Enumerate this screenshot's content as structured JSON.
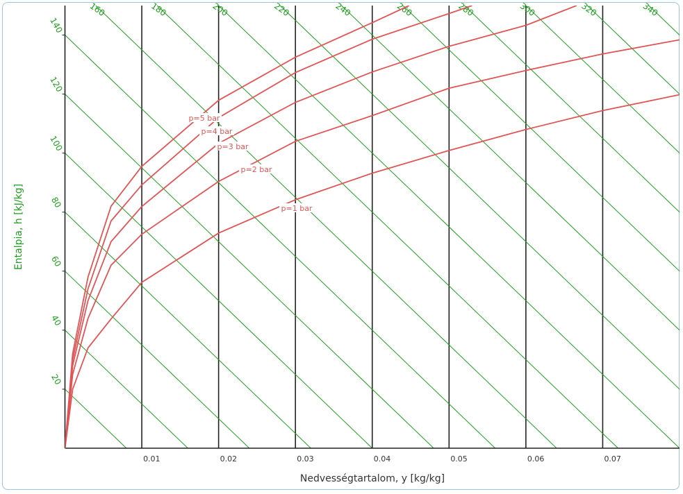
{
  "chart_data": {
    "type": "line",
    "xlabel": "Nedvességtartalom, y [kg/kg]",
    "ylabel": "Entalpia, h [kJ/kg]",
    "xlim": [
      0,
      0.08
    ],
    "ylim": [
      0,
      150
    ],
    "xticks": [
      0.01,
      0.02,
      0.03,
      0.04,
      0.05,
      0.06,
      0.07
    ],
    "yticks": [
      20,
      40,
      60,
      80,
      100,
      120,
      140
    ],
    "enthalpy_lines": {
      "color": "#1e9e1e",
      "values": [
        160,
        180,
        200,
        220,
        240,
        260,
        280,
        300,
        320,
        340
      ]
    },
    "series": [
      {
        "name": "p=1 bar",
        "color": "#e05555",
        "x": [
          0,
          0.001,
          0.003,
          0.006,
          0.01,
          0.02,
          0.03,
          0.04,
          0.05,
          0.06,
          0.07,
          0.08
        ],
        "values": [
          0,
          20,
          34,
          43.8,
          56.2,
          72.9,
          84.2,
          93.2,
          100.9,
          108,
          114.4,
          119.8
        ]
      },
      {
        "name": "p=2 bar",
        "color": "#e05555",
        "x": [
          0,
          0.001,
          0.003,
          0.006,
          0.01,
          0.02,
          0.03,
          0.04,
          0.05,
          0.06,
          0.07,
          0.08
        ],
        "values": [
          0,
          25,
          44,
          62,
          72.5,
          90.4,
          104,
          112.7,
          122,
          128,
          133.6,
          138.4
        ]
      },
      {
        "name": "p=3 bar",
        "color": "#e05555",
        "x": [
          0,
          0.001,
          0.003,
          0.006,
          0.01,
          0.02,
          0.03,
          0.04,
          0.05,
          0.06,
          0.0666
        ],
        "values": [
          0,
          28,
          50,
          70,
          81.9,
          103.3,
          117.2,
          127.5,
          136.2,
          143.3,
          150
        ]
      },
      {
        "name": "p=4 bar",
        "color": "#e05555",
        "x": [
          0,
          0.001,
          0.003,
          0.006,
          0.01,
          0.02,
          0.03,
          0.04,
          0.05,
          0.053
        ],
        "values": [
          0,
          30,
          54,
          77,
          89.2,
          112,
          127.3,
          138.6,
          147.3,
          150
        ]
      },
      {
        "name": "p=5 bar",
        "color": "#e05555",
        "x": [
          0,
          0.001,
          0.003,
          0.006,
          0.01,
          0.02,
          0.03,
          0.04,
          0.0448
        ],
        "values": [
          0,
          32,
          58,
          82,
          95.5,
          117.9,
          132.5,
          144.2,
          150
        ]
      }
    ]
  }
}
